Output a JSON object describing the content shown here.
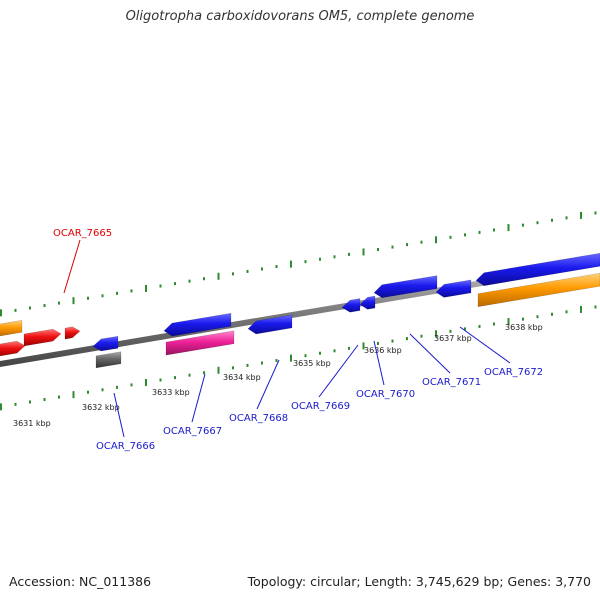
{
  "header": {
    "title": "Oligotropha carboxidovorans OM5, complete genome"
  },
  "footer": {
    "accession": "Accession: NC_011386",
    "summary": "Topology: circular; Length: 3,745,629 bp; Genes: 3,770"
  },
  "colors": {
    "backbone": "#808080",
    "tick": "#2e8b2e",
    "blue": "#1a1aee",
    "red": "#ee1111",
    "orange": "#ff9900",
    "pink": "#ee2299",
    "gray": "#666666",
    "label_red": "#dd0000",
    "label_blue": "#1a1acc"
  },
  "scale": {
    "unit": "kbp",
    "labels": [
      "3631 kbp",
      "3632 kbp",
      "3633 kbp",
      "3634 kbp",
      "3635 kbp",
      "3636 kbp",
      "3637 kbp",
      "3638 kbp"
    ]
  },
  "gene_labels": [
    {
      "text": "OCAR_7665",
      "color": "label_red"
    },
    {
      "text": "OCAR_7666",
      "color": "label_blue"
    },
    {
      "text": "OCAR_7667",
      "color": "label_blue"
    },
    {
      "text": "OCAR_7668",
      "color": "label_blue"
    },
    {
      "text": "OCAR_7669",
      "color": "label_blue"
    },
    {
      "text": "OCAR_7670",
      "color": "label_blue"
    },
    {
      "text": "OCAR_7671",
      "color": "label_blue"
    },
    {
      "text": "OCAR_7672",
      "color": "label_blue"
    }
  ]
}
